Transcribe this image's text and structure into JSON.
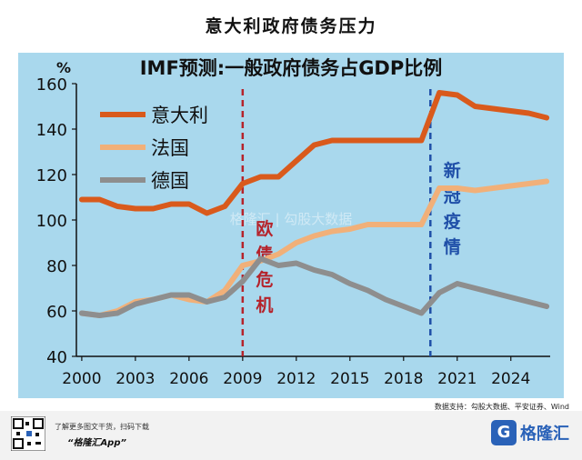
{
  "page_title": "意大利政府债务压力",
  "source": "数据支持：勾股大数据、平安证券、Wind",
  "footer": {
    "promo": "了解更多图文干货，扫码下载",
    "app": "“格隆汇App”",
    "brand": "格隆汇",
    "brand_logo": "G"
  },
  "watermark": "格隆汇 | 勾股大数据",
  "chart_data": {
    "type": "line",
    "title": "IMF预测:一般政府债务占GDP比例",
    "ylabel": "%",
    "ylim": [
      40,
      160
    ],
    "yticks": [
      40,
      60,
      80,
      100,
      120,
      140,
      160
    ],
    "xlim": [
      1999.7,
      2026.2
    ],
    "xticks": [
      2000,
      2003,
      2006,
      2009,
      2012,
      2015,
      2018,
      2021,
      2024
    ],
    "x": [
      2000,
      2001,
      2002,
      2003,
      2004,
      2005,
      2006,
      2007,
      2008,
      2009,
      2010,
      2011,
      2012,
      2013,
      2014,
      2015,
      2016,
      2017,
      2018,
      2019,
      2020,
      2021,
      2022,
      2023,
      2024,
      2025,
      2026
    ],
    "series": [
      {
        "name": "意大利",
        "color": "#d95a1c",
        "values": [
          109,
          109,
          106,
          105,
          105,
          107,
          107,
          103,
          106,
          116,
          119,
          119,
          126,
          133,
          135,
          135,
          135,
          135,
          135,
          135,
          156,
          155,
          150,
          149,
          148,
          147,
          145
        ]
      },
      {
        "name": "法国",
        "color": "#f1b079",
        "values": [
          59,
          58,
          60,
          64,
          65,
          67,
          65,
          64,
          69,
          80,
          82,
          85,
          90,
          93,
          95,
          96,
          98,
          98,
          98,
          98,
          114,
          114,
          113,
          114,
          115,
          116,
          117
        ]
      },
      {
        "name": "德国",
        "color": "#8e8e8e",
        "values": [
          59,
          58,
          59,
          63,
          65,
          67,
          67,
          64,
          66,
          73,
          83,
          80,
          81,
          78,
          76,
          72,
          69,
          65,
          62,
          59,
          68,
          72,
          70,
          68,
          66,
          64,
          62
        ]
      }
    ],
    "annotations": [
      {
        "text": "欧债危机",
        "x": 2009,
        "color": "#b5232b"
      },
      {
        "text": "新冠疫情",
        "x": 2019.5,
        "color": "#1f4fa8"
      }
    ],
    "legend": "top-left",
    "grid": false
  }
}
